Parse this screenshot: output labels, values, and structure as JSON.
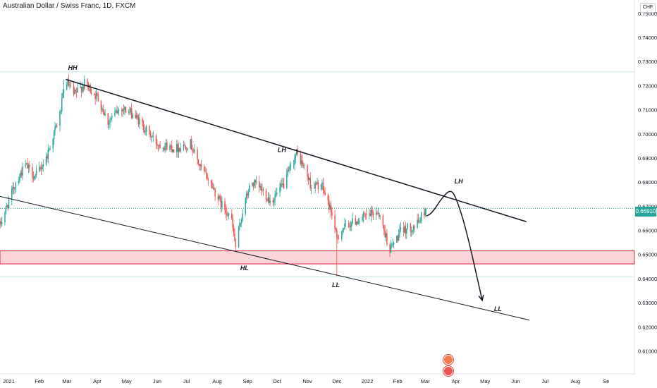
{
  "header": {
    "title": "Australian Dollar / Swiss Franc, 1D, FXCM",
    "currency": "CHF"
  },
  "last_price": "0.66910",
  "colors": {
    "up": "#26a69a",
    "down": "#ef5350",
    "zone_fill": "#fcd6da",
    "zone_border": "#e01f3a",
    "price_line": "#26a69a",
    "ref_line": "#c4e4e2",
    "trend_line": "#131722"
  },
  "chart_data": {
    "type": "candlestick",
    "symbol": "AUDCHF",
    "timeframe": "1D",
    "y_axis_side": "right",
    "ylim": [
      0.6005,
      0.7555
    ],
    "yticks": [
      "0.75000",
      "0.74000",
      "0.73000",
      "0.72000",
      "0.71000",
      "0.70000",
      "0.69000",
      "0.68000",
      "0.67000",
      "0.66000",
      "0.65000",
      "0.64000",
      "0.63000",
      "0.62000",
      "0.61000"
    ],
    "xlim": [
      "2020-12-23",
      "2022-09-30"
    ],
    "xticks": [
      {
        "label": "2021",
        "date": "2021-01-01"
      },
      {
        "label": "Feb",
        "date": "2021-02-01"
      },
      {
        "label": "Mar",
        "date": "2021-03-01"
      },
      {
        "label": "Apr",
        "date": "2021-04-01"
      },
      {
        "label": "May",
        "date": "2021-05-01"
      },
      {
        "label": "Jun",
        "date": "2021-06-01"
      },
      {
        "label": "Jul",
        "date": "2021-07-01"
      },
      {
        "label": "Aug",
        "date": "2021-08-01"
      },
      {
        "label": "Sep",
        "date": "2021-09-01"
      },
      {
        "label": "Oct",
        "date": "2021-10-01"
      },
      {
        "label": "Nov",
        "date": "2021-11-01"
      },
      {
        "label": "Dec",
        "date": "2021-12-01"
      },
      {
        "label": "2022",
        "date": "2022-01-01"
      },
      {
        "label": "Feb",
        "date": "2022-02-01"
      },
      {
        "label": "Mar",
        "date": "2022-03-01"
      },
      {
        "label": "Apr",
        "date": "2022-04-01"
      },
      {
        "label": "May",
        "date": "2022-05-01"
      },
      {
        "label": "Jun",
        "date": "2022-06-01"
      },
      {
        "label": "Jul",
        "date": "2022-07-01"
      },
      {
        "label": "Aug",
        "date": "2022-08-01"
      },
      {
        "label": "Se",
        "date": "2022-09-01"
      }
    ],
    "price_path": [
      [
        "2020-12-23",
        0.662
      ],
      [
        "2021-01-08",
        0.68
      ],
      [
        "2021-01-18",
        0.687
      ],
      [
        "2021-01-28",
        0.682
      ],
      [
        "2021-02-08",
        0.69
      ],
      [
        "2021-02-22",
        0.708
      ],
      [
        "2021-02-28",
        0.7225
      ],
      [
        "2021-03-08",
        0.716
      ],
      [
        "2021-03-20",
        0.721
      ],
      [
        "2021-04-03",
        0.714
      ],
      [
        "2021-04-12",
        0.705
      ],
      [
        "2021-04-25",
        0.711
      ],
      [
        "2021-05-08",
        0.708
      ],
      [
        "2021-05-20",
        0.702
      ],
      [
        "2021-06-01",
        0.696
      ],
      [
        "2021-06-20",
        0.694
      ],
      [
        "2021-07-05",
        0.696
      ],
      [
        "2021-07-15",
        0.686
      ],
      [
        "2021-07-25",
        0.68
      ],
      [
        "2021-08-05",
        0.671
      ],
      [
        "2021-08-15",
        0.666
      ],
      [
        "2021-08-20",
        0.653
      ],
      [
        "2021-08-28",
        0.67
      ],
      [
        "2021-09-05",
        0.68
      ],
      [
        "2021-09-15",
        0.677
      ],
      [
        "2021-09-25",
        0.672
      ],
      [
        "2021-10-08",
        0.679
      ],
      [
        "2021-10-21",
        0.692
      ],
      [
        "2021-10-30",
        0.685
      ],
      [
        "2021-11-05",
        0.678
      ],
      [
        "2021-11-15",
        0.679
      ],
      [
        "2021-11-26",
        0.667
      ],
      [
        "2021-12-01",
        0.656
      ],
      [
        "2021-12-05",
        0.66
      ],
      [
        "2021-12-15",
        0.663
      ],
      [
        "2022-01-01",
        0.666
      ],
      [
        "2022-01-12",
        0.668
      ],
      [
        "2022-01-24",
        0.652
      ],
      [
        "2022-02-05",
        0.66
      ],
      [
        "2022-02-20",
        0.662
      ],
      [
        "2022-03-02",
        0.6691
      ]
    ],
    "extremes": [
      {
        "date": "2021-02-26",
        "price": 0.7225
      },
      {
        "date": "2021-08-20",
        "price": 0.652
      },
      {
        "date": "2021-10-21",
        "price": 0.693
      },
      {
        "date": "2021-12-01",
        "price": 0.641
      }
    ],
    "zone": {
      "top": 0.6515,
      "bottom": 0.6461
    },
    "last_price_line": 0.6691,
    "ref_lines": [
      0.7257,
      0.6408
    ],
    "trendlines": [
      {
        "name": "upper",
        "from": [
          "2021-02-28",
          0.7226
        ],
        "to": [
          "2022-06-12",
          0.6636
        ]
      },
      {
        "name": "lower",
        "from": [
          "2020-12-23",
          0.6741
        ],
        "to": [
          "2022-06-15",
          0.6228
        ]
      }
    ],
    "projection": [
      [
        "2022-03-02",
        0.6659
      ],
      [
        "2022-03-08",
        0.6672
      ],
      [
        "2022-03-18",
        0.6735
      ],
      [
        "2022-03-27",
        0.6771
      ],
      [
        "2022-04-02",
        0.673
      ],
      [
        "2022-04-12",
        0.66
      ],
      [
        "2022-04-28",
        0.631
      ]
    ],
    "annotations": [
      {
        "text": "HH",
        "date": "2021-03-07",
        "price": 0.7265
      },
      {
        "text": "LH",
        "date": "2021-10-06",
        "price": 0.6925
      },
      {
        "text": "LH",
        "date": "2022-04-04",
        "price": 0.6795
      },
      {
        "text": "HL",
        "date": "2021-08-29",
        "price": 0.6435
      },
      {
        "text": "LL",
        "date": "2021-11-30",
        "price": 0.6365
      },
      {
        "text": "LL",
        "date": "2022-05-14",
        "price": 0.6265
      }
    ]
  }
}
